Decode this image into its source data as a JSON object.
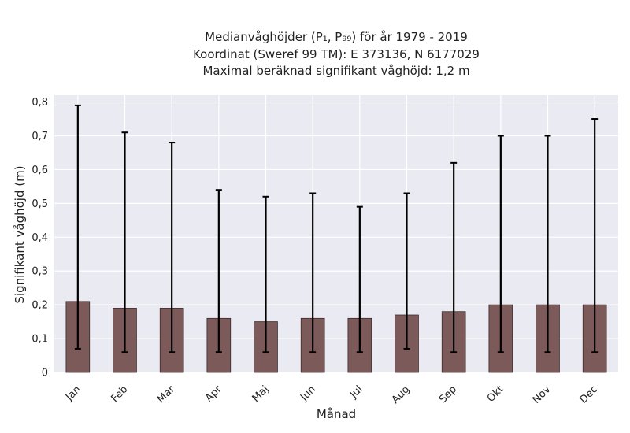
{
  "chart_data": {
    "type": "bar",
    "title_lines": [
      "Medianvåghöjder (P₁, P₉₉) för år 1979 - 2019",
      "Koordinat (Sweref 99 TM): E 373136, N 6177029",
      "Maximal beräknad signifikant våghöjd: 1,2 m"
    ],
    "xlabel": "Månad",
    "ylabel": "Signifikant våghöjd (m)",
    "categories": [
      "Jan",
      "Feb",
      "Mar",
      "Apr",
      "Maj",
      "Jun",
      "Jul",
      "Aug",
      "Sep",
      "Okt",
      "Nov",
      "Dec"
    ],
    "series": [
      {
        "values": [
          0.21,
          0.19,
          0.19,
          0.16,
          0.15,
          0.16,
          0.16,
          0.17,
          0.18,
          0.2,
          0.2,
          0.2
        ],
        "error_low": [
          0.07,
          0.06,
          0.06,
          0.06,
          0.06,
          0.06,
          0.06,
          0.07,
          0.06,
          0.06,
          0.06,
          0.06
        ],
        "error_high": [
          0.79,
          0.71,
          0.68,
          0.54,
          0.52,
          0.53,
          0.49,
          0.53,
          0.62,
          0.7,
          0.7,
          0.75
        ]
      }
    ],
    "ylim": [
      0,
      0.82
    ],
    "yticks": [
      0,
      0.1,
      0.2,
      0.3,
      0.4,
      0.5,
      0.6,
      0.7,
      0.8
    ],
    "ytick_labels": [
      "0",
      "0,1",
      "0,2",
      "0,3",
      "0,4",
      "0,5",
      "0,6",
      "0,7",
      "0,8"
    ],
    "grid": true,
    "colors": {
      "bar_fill": "#7d5a5a",
      "bar_edge": "#3a2a2a",
      "error": "#000000",
      "background": "#eaeaf2",
      "grid": "#ffffff"
    }
  }
}
